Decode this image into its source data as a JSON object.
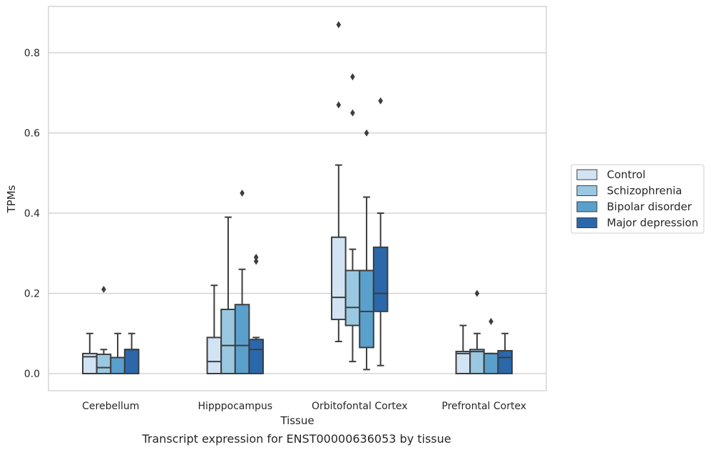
{
  "chart_data": {
    "type": "boxplot",
    "xlabel": "Tissue",
    "ylabel": "TPMs",
    "ylim": [
      -0.043,
      0.915
    ],
    "yticks": [
      0.0,
      0.2,
      0.4,
      0.6,
      0.8
    ],
    "ytick_labels": [
      "0.0",
      "0.2",
      "0.4",
      "0.6",
      "0.8"
    ],
    "grid": "horizontal",
    "legend_position": "right",
    "categories": [
      "Cerebellum",
      "Hipppocampus",
      "Orbitofontal Cortex",
      "Prefrontal Cortex"
    ],
    "series": [
      {
        "name": "Control",
        "color": "#d2e3f3",
        "boxes": [
          {
            "whislo": 0.0,
            "q1": 0.0,
            "med": 0.042,
            "q3": 0.05,
            "whishi": 0.1,
            "fliers": []
          },
          {
            "whislo": 0.0,
            "q1": 0.0,
            "med": 0.03,
            "q3": 0.09,
            "whishi": 0.22,
            "fliers": []
          },
          {
            "whislo": 0.08,
            "q1": 0.135,
            "med": 0.19,
            "q3": 0.34,
            "whishi": 0.52,
            "fliers": [
              0.67,
              0.87
            ]
          },
          {
            "whislo": 0.0,
            "q1": 0.0,
            "med": 0.05,
            "q3": 0.055,
            "whishi": 0.12,
            "fliers": []
          }
        ]
      },
      {
        "name": "Schizophrenia",
        "color": "#9ac8e0",
        "boxes": [
          {
            "whislo": 0.0,
            "q1": 0.0,
            "med": 0.015,
            "q3": 0.048,
            "whishi": 0.06,
            "fliers": [
              0.21
            ]
          },
          {
            "whislo": 0.0,
            "q1": 0.0,
            "med": 0.07,
            "q3": 0.16,
            "whishi": 0.39,
            "fliers": []
          },
          {
            "whislo": 0.03,
            "q1": 0.12,
            "med": 0.165,
            "q3": 0.257,
            "whishi": 0.31,
            "fliers": [
              0.65,
              0.74
            ]
          },
          {
            "whislo": 0.0,
            "q1": 0.0,
            "med": 0.055,
            "q3": 0.06,
            "whishi": 0.1,
            "fliers": [
              0.2
            ]
          }
        ]
      },
      {
        "name": "Bipolar disorder",
        "color": "#5aa0cd",
        "boxes": [
          {
            "whislo": 0.0,
            "q1": 0.0,
            "med": 0.04,
            "q3": 0.04,
            "whishi": 0.1,
            "fliers": []
          },
          {
            "whislo": 0.0,
            "q1": 0.0,
            "med": 0.07,
            "q3": 0.172,
            "whishi": 0.26,
            "fliers": [
              0.45
            ]
          },
          {
            "whislo": 0.01,
            "q1": 0.065,
            "med": 0.155,
            "q3": 0.257,
            "whishi": 0.44,
            "fliers": [
              0.6
            ]
          },
          {
            "whislo": 0.0,
            "q1": 0.0,
            "med": 0.05,
            "q3": 0.05,
            "whishi": 0.05,
            "fliers": [
              0.13
            ]
          }
        ]
      },
      {
        "name": "Major depression",
        "color": "#2a68ab",
        "boxes": [
          {
            "whislo": 0.0,
            "q1": 0.0,
            "med": 0.06,
            "q3": 0.06,
            "whishi": 0.1,
            "fliers": []
          },
          {
            "whislo": 0.0,
            "q1": 0.0,
            "med": 0.06,
            "q3": 0.085,
            "whishi": 0.09,
            "fliers": [
              0.28,
              0.29
            ]
          },
          {
            "whislo": 0.02,
            "q1": 0.155,
            "med": 0.2,
            "q3": 0.315,
            "whishi": 0.4,
            "fliers": [
              0.68
            ]
          },
          {
            "whislo": 0.0,
            "q1": 0.0,
            "med": 0.04,
            "q3": 0.057,
            "whishi": 0.1,
            "fliers": []
          }
        ]
      }
    ]
  },
  "caption": "Transcript expression for ENST00000636053 by tissue"
}
